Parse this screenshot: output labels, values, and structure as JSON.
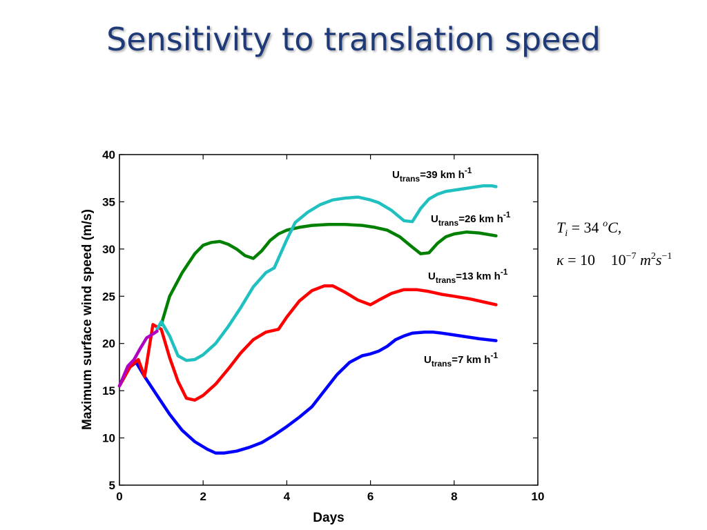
{
  "slide": {
    "title": "Sensitivity to translation speed"
  },
  "chart_data": {
    "type": "line",
    "xlabel": "Days",
    "ylabel": "Maximum surface wind speed (m/s)",
    "xlim": [
      0,
      10
    ],
    "ylim": [
      5,
      40
    ],
    "xticks": [
      "0",
      "2",
      "4",
      "6",
      "8",
      "10"
    ],
    "yticks": [
      "5",
      "10",
      "15",
      "20",
      "25",
      "30",
      "35",
      "40"
    ],
    "grid": false,
    "series": [
      {
        "name": "Utrans=7 km h-1",
        "label_main": "U",
        "label_sub": "trans",
        "label_rest": "=7 km h",
        "label_sup": "-1",
        "color": "#0000ff",
        "x": [
          0,
          0.25,
          0.4,
          0.6,
          0.9,
          1.2,
          1.5,
          1.8,
          2.1,
          2.3,
          2.5,
          2.8,
          3.1,
          3.4,
          3.7,
          4.0,
          4.3,
          4.6,
          4.9,
          5.2,
          5.5,
          5.8,
          6.0,
          6.2,
          6.4,
          6.6,
          6.8,
          7.0,
          7.3,
          7.5,
          7.7,
          8.0,
          8.3,
          8.6,
          9.0
        ],
        "y": [
          15.5,
          17.5,
          18.0,
          16.5,
          14.5,
          12.5,
          10.8,
          9.6,
          8.8,
          8.4,
          8.4,
          8.6,
          9.0,
          9.5,
          10.3,
          11.2,
          12.2,
          13.3,
          15.0,
          16.7,
          18.0,
          18.7,
          18.9,
          19.2,
          19.7,
          20.4,
          20.8,
          21.1,
          21.2,
          21.2,
          21.1,
          20.9,
          20.7,
          20.5,
          20.3
        ]
      },
      {
        "name": "Utrans=13 km h-1",
        "label_main": "U",
        "label_sub": "trans",
        "label_rest": "=13 km h",
        "label_sup": "-1",
        "color": "#ff0000",
        "x": [
          0,
          0.25,
          0.45,
          0.6,
          0.8,
          1.0,
          1.2,
          1.4,
          1.6,
          1.8,
          2.0,
          2.3,
          2.6,
          2.9,
          3.2,
          3.5,
          3.8,
          4.0,
          4.3,
          4.6,
          4.9,
          5.1,
          5.4,
          5.7,
          6.0,
          6.2,
          6.5,
          6.8,
          7.1,
          7.4,
          7.7,
          8.0,
          8.4,
          8.7,
          9.0
        ],
        "y": [
          15.5,
          17.5,
          18.3,
          16.5,
          22.0,
          21.5,
          18.5,
          16.0,
          14.2,
          14.0,
          14.5,
          15.7,
          17.3,
          19.0,
          20.4,
          21.2,
          21.5,
          22.8,
          24.5,
          25.6,
          26.1,
          26.1,
          25.4,
          24.6,
          24.1,
          24.6,
          25.3,
          25.7,
          25.7,
          25.5,
          25.2,
          25.0,
          24.7,
          24.4,
          24.1
        ]
      },
      {
        "name": "Utrans=26 km h-1",
        "label_main": "U",
        "label_sub": "trans",
        "label_rest": "=26 km h",
        "label_sup": "-1",
        "color": "#008000",
        "x": [
          1.0,
          1.2,
          1.5,
          1.8,
          2.0,
          2.2,
          2.4,
          2.6,
          2.8,
          3.0,
          3.2,
          3.4,
          3.6,
          3.8,
          4.0,
          4.3,
          4.6,
          5.0,
          5.4,
          5.8,
          6.1,
          6.4,
          6.7,
          7.0,
          7.2,
          7.4,
          7.6,
          7.8,
          8.0,
          8.3,
          8.6,
          9.0
        ],
        "y": [
          22.0,
          25.0,
          27.5,
          29.5,
          30.4,
          30.7,
          30.8,
          30.5,
          30.0,
          29.3,
          29.0,
          29.8,
          30.9,
          31.6,
          32.0,
          32.3,
          32.5,
          32.6,
          32.6,
          32.5,
          32.3,
          32.0,
          31.3,
          30.2,
          29.5,
          29.6,
          30.6,
          31.3,
          31.6,
          31.8,
          31.7,
          31.4
        ]
      },
      {
        "name": "Utrans=39 km h-1",
        "label_main": "U",
        "label_sub": "trans",
        "label_rest": "=39 km h",
        "label_sup": "-1",
        "color": "#20c0c0",
        "x": [
          0.9,
          1.0,
          1.2,
          1.4,
          1.6,
          1.8,
          2.0,
          2.3,
          2.6,
          2.9,
          3.2,
          3.5,
          3.7,
          4.0,
          4.2,
          4.5,
          4.8,
          5.1,
          5.4,
          5.7,
          6.0,
          6.2,
          6.5,
          6.8,
          7.0,
          7.2,
          7.4,
          7.6,
          7.8,
          8.1,
          8.4,
          8.7,
          8.9,
          9.0
        ],
        "y": [
          21.5,
          22.3,
          20.8,
          18.7,
          18.2,
          18.3,
          18.8,
          20.0,
          21.8,
          23.8,
          26.0,
          27.5,
          28.0,
          31.0,
          32.8,
          33.9,
          34.7,
          35.2,
          35.4,
          35.5,
          35.2,
          34.9,
          34.1,
          33.0,
          32.9,
          34.3,
          35.3,
          35.8,
          36.1,
          36.3,
          36.5,
          36.7,
          36.7,
          36.6
        ]
      },
      {
        "name": "",
        "color": "#b000c0",
        "x": [
          0,
          0.2,
          0.35,
          0.5,
          0.65,
          0.8,
          0.9
        ],
        "y": [
          15.5,
          17.6,
          18.3,
          19.5,
          20.6,
          21.0,
          21.3
        ]
      }
    ],
    "annotation": {
      "line1_main": "T",
      "line1_sub": "i",
      "line1_rest": " = 34 ",
      "line1_sup": "o",
      "line1_end": "C,",
      "line2_main": "κ",
      "line2_rest": " = 10\u0000 10",
      "line2_sup": "−7",
      "line2_m": " m",
      "line2_m_sup": "2",
      "line2_s": "s",
      "line2_s_sup": "−1"
    }
  }
}
